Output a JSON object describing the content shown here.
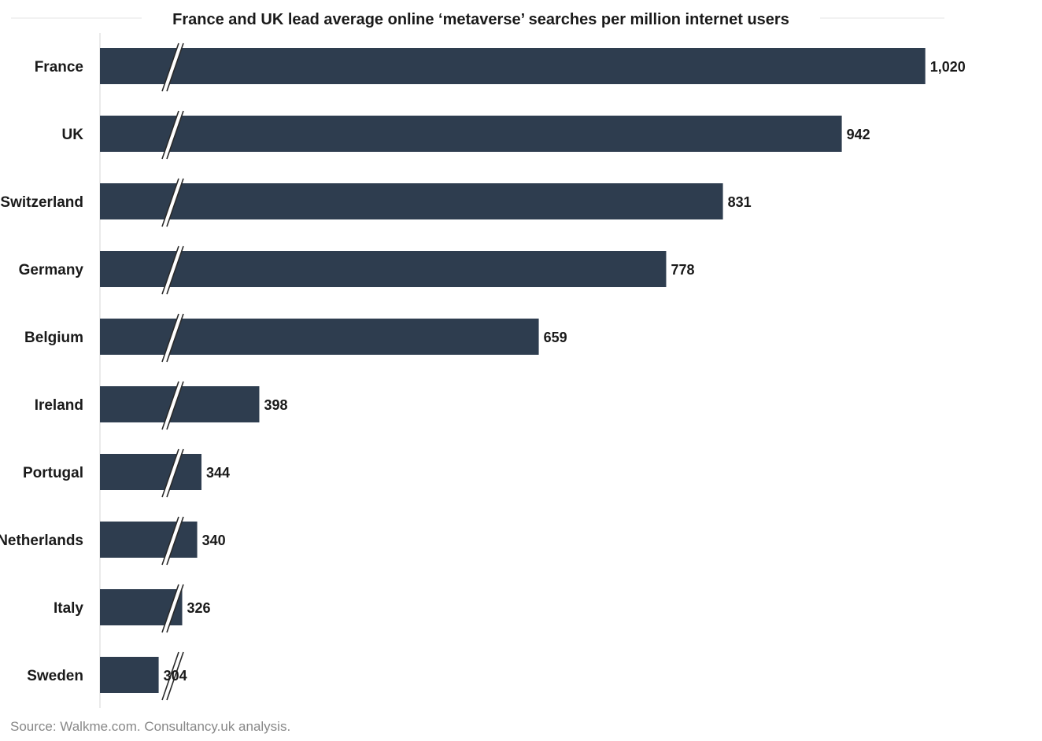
{
  "chart_data": {
    "type": "bar",
    "orientation": "horizontal",
    "title": "France and UK lead average online ‘metaverse’ searches per million internet users",
    "xlabel": "",
    "ylabel": "",
    "categories": [
      "France",
      "UK",
      "Switzerland",
      "Germany",
      "Belgium",
      "Ireland",
      "Portugal",
      "Netherlands",
      "Italy",
      "Sweden"
    ],
    "values": [
      1020,
      942,
      831,
      778,
      659,
      398,
      344,
      340,
      326,
      304
    ],
    "value_labels": [
      "1,020",
      "942",
      "831",
      "778",
      "659",
      "398",
      "344",
      "340",
      "326",
      "304"
    ],
    "axis_break": true,
    "grid": false,
    "legend": "none",
    "bar_color": "#2e3d4f"
  },
  "source": "Source: Walkme.com. Consultancy.uk analysis."
}
